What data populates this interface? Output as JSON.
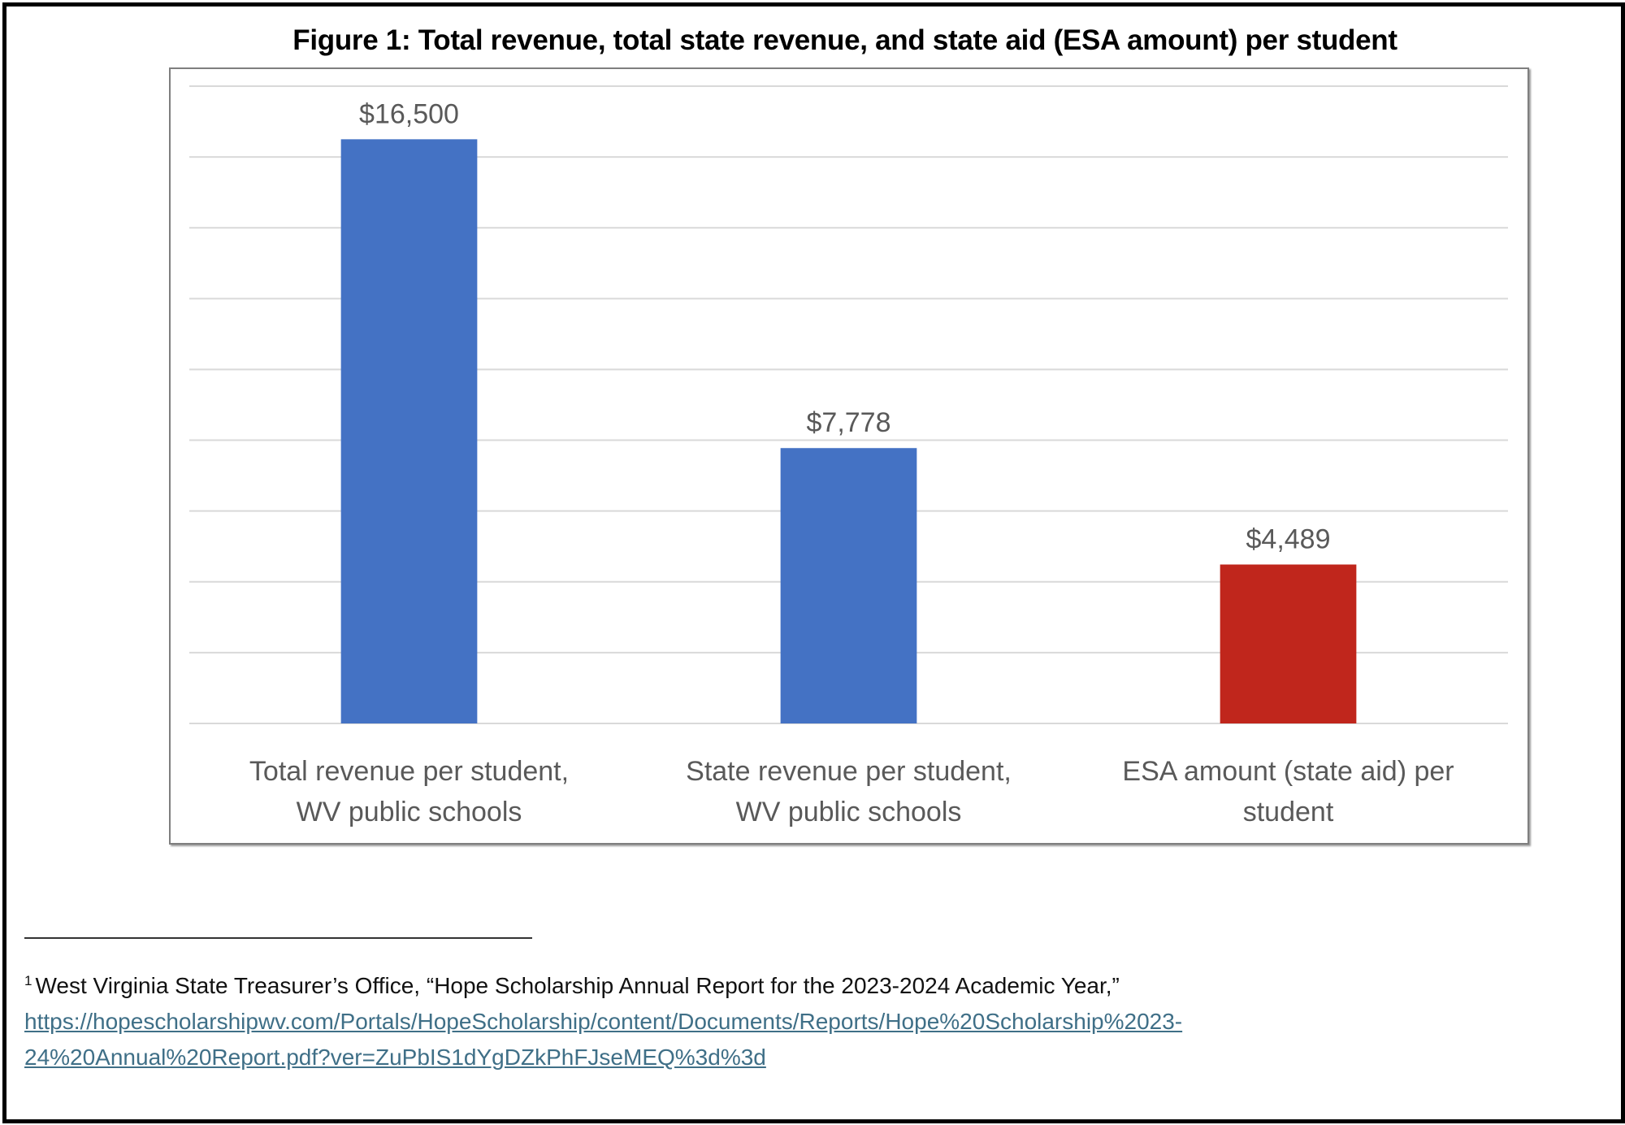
{
  "chart_data": {
    "type": "bar",
    "title": "Figure 1: Total revenue, total state revenue, and state aid (ESA amount) per student",
    "categories": [
      [
        "Total revenue per student,",
        "WV public schools"
      ],
      [
        "State revenue per student,",
        "WV public schools"
      ],
      [
        "ESA amount (state aid) per",
        "student"
      ]
    ],
    "values": [
      16500,
      7778,
      4489
    ],
    "data_labels": [
      "$16,500",
      "$7,778",
      "$4,489"
    ],
    "bar_colors": [
      "#4472c4",
      "#4472c4",
      "#c0261c"
    ],
    "xlabel": "",
    "ylabel": "",
    "ylim": [
      0,
      18000
    ],
    "y_gridline_step": 2000,
    "grid": true,
    "y_tick_labels_visible": false,
    "legend": "none"
  },
  "footnote": {
    "marker": "1",
    "text": "West Virginia State Treasurer’s Office, “Hope Scholarship Annual Report for the 2023-2024 Academic Year,”",
    "link_line1": "https://hopescholarshipwv.com/Portals/HopeScholarship/content/Documents/Reports/Hope%20Scholarship%2023-",
    "link_line2": "24%20Annual%20Report.pdf?ver=ZuPbIS1dYgDZkPhFJseMEQ%3d%3d"
  }
}
